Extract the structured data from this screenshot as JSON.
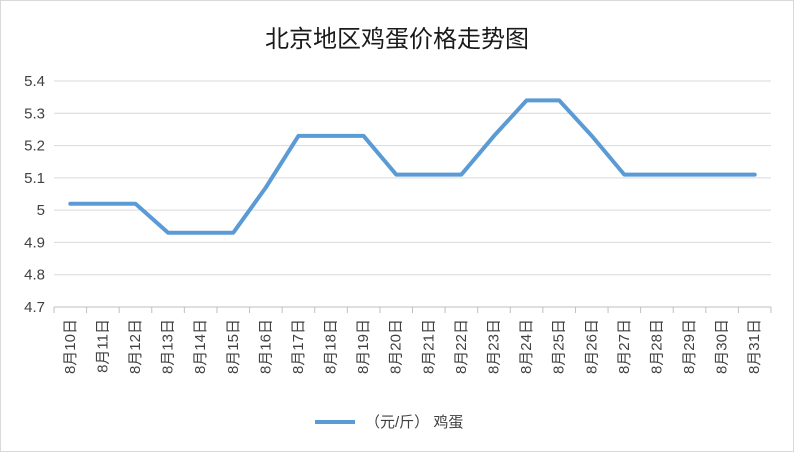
{
  "chart_data": {
    "type": "line",
    "title": "北京地区鸡蛋价格走势图",
    "xlabel": "",
    "ylabel": "",
    "categories": [
      "8月10日",
      "8月11日",
      "8月12日",
      "8月13日",
      "8月14日",
      "8月15日",
      "8月16日",
      "8月17日",
      "8月18日",
      "8月19日",
      "8月20日",
      "8月21日",
      "8月22日",
      "8月23日",
      "8月24日",
      "8月25日",
      "8月26日",
      "8月27日",
      "8月28日",
      "8月29日",
      "8月30日",
      "8月31日"
    ],
    "series": [
      {
        "name": "（元/斤） 鸡蛋",
        "color": "#5b9bd5",
        "values": [
          5.02,
          5.02,
          5.02,
          4.93,
          4.93,
          4.93,
          5.07,
          5.23,
          5.23,
          5.23,
          5.11,
          5.11,
          5.11,
          5.23,
          5.34,
          5.34,
          5.23,
          5.11,
          5.11,
          5.11,
          5.11,
          5.11
        ]
      }
    ],
    "ylim": [
      4.7,
      5.4
    ],
    "yticks": [
      4.7,
      4.8,
      4.9,
      5,
      5.1,
      5.2,
      5.3,
      5.4
    ],
    "grid": true,
    "legend": "bottom"
  }
}
